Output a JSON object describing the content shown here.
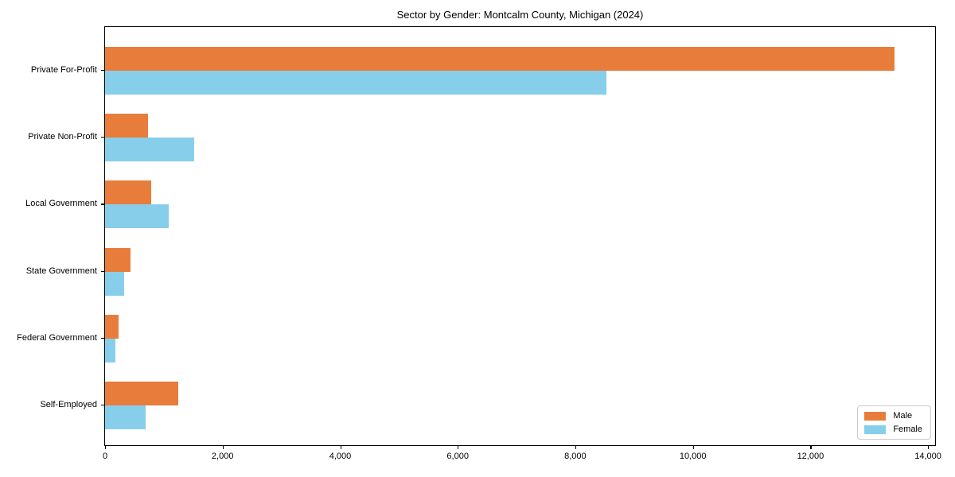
{
  "chart_data": {
    "type": "bar",
    "orientation": "horizontal",
    "title": "Sector by Gender: Montcalm County, Michigan (2024)",
    "categories": [
      "Private For-Profit",
      "Private Non-Profit",
      "Local Government",
      "State Government",
      "Federal Government",
      "Self-Employed"
    ],
    "series": [
      {
        "name": "Male",
        "color": "#E87D3B",
        "values": [
          13430,
          730,
          780,
          430,
          230,
          1250
        ]
      },
      {
        "name": "Female",
        "color": "#87CEEB",
        "values": [
          8530,
          1510,
          1080,
          320,
          180,
          690
        ]
      }
    ],
    "xlim": [
      0,
      14000
    ],
    "x_ticks": [
      0,
      2000,
      4000,
      6000,
      8000,
      10000,
      12000,
      14000
    ],
    "x_tick_labels": [
      "0",
      "2,000",
      "4,000",
      "6,000",
      "8,000",
      "10,000",
      "12,000",
      "14,000"
    ],
    "ylabel": "",
    "xlabel": "",
    "grid": false,
    "legend_position": "lower right"
  }
}
